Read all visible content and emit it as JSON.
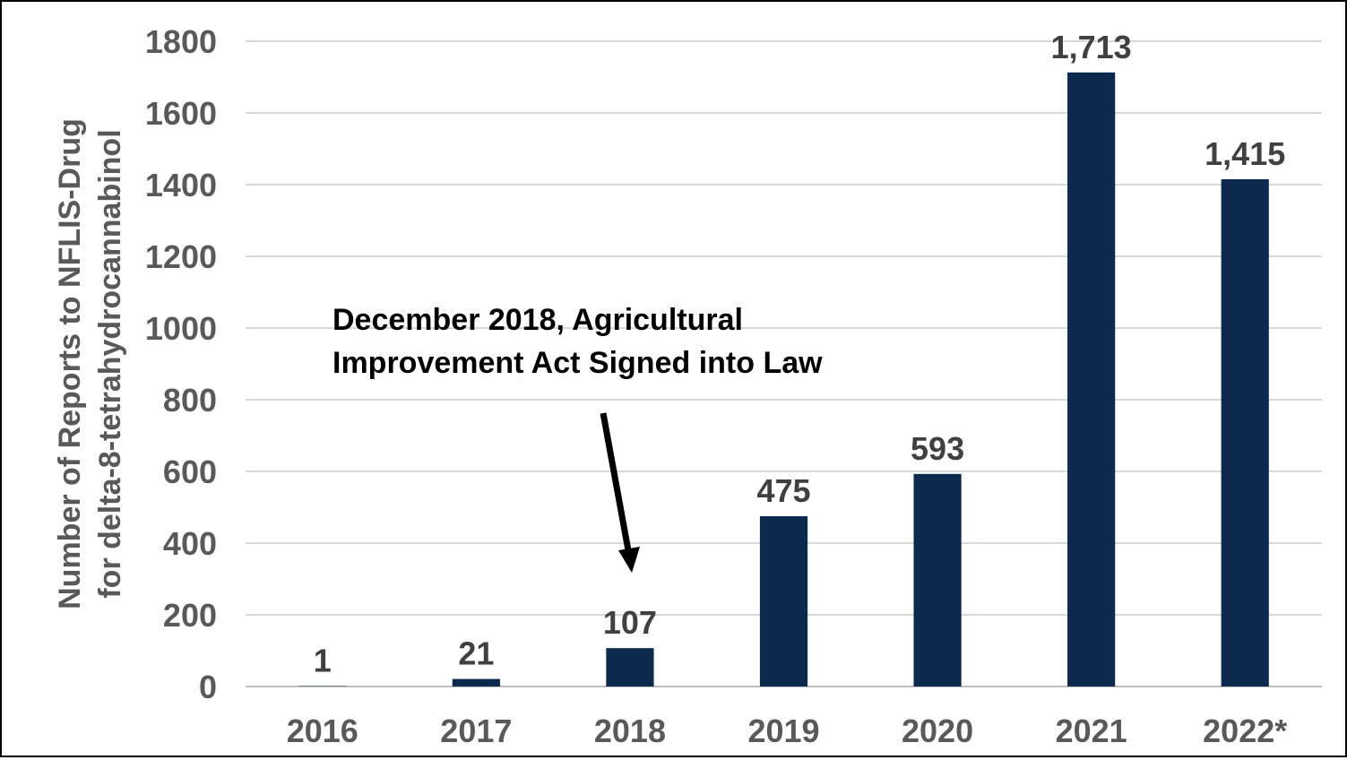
{
  "chart_data": {
    "type": "bar",
    "categories": [
      "2016",
      "2017",
      "2018",
      "2019",
      "2020",
      "2021",
      "2022*"
    ],
    "values": [
      1,
      21,
      107,
      475,
      593,
      1713,
      1415
    ],
    "data_labels": [
      "1",
      "21",
      "107",
      "475",
      "593",
      "1,713",
      "1,415"
    ],
    "ylabel_lines": [
      "Number of Reports to NFLIS-Drug",
      "for delta-8-tetrahydrocannabinol"
    ],
    "ylim": [
      0,
      1800
    ],
    "yticks": [
      0,
      200,
      400,
      600,
      800,
      1000,
      1200,
      1400,
      1600,
      1800
    ],
    "grid": true,
    "legend": "none",
    "annotation": {
      "lines": [
        "December 2018, Agricultural",
        "Improvement Act Signed into Law"
      ],
      "points_to": "2018"
    },
    "colors": {
      "bar": "#0b2a4d",
      "grid": "#d9d9d9",
      "axis_text": "#595959",
      "data_label": "#404040"
    }
  }
}
